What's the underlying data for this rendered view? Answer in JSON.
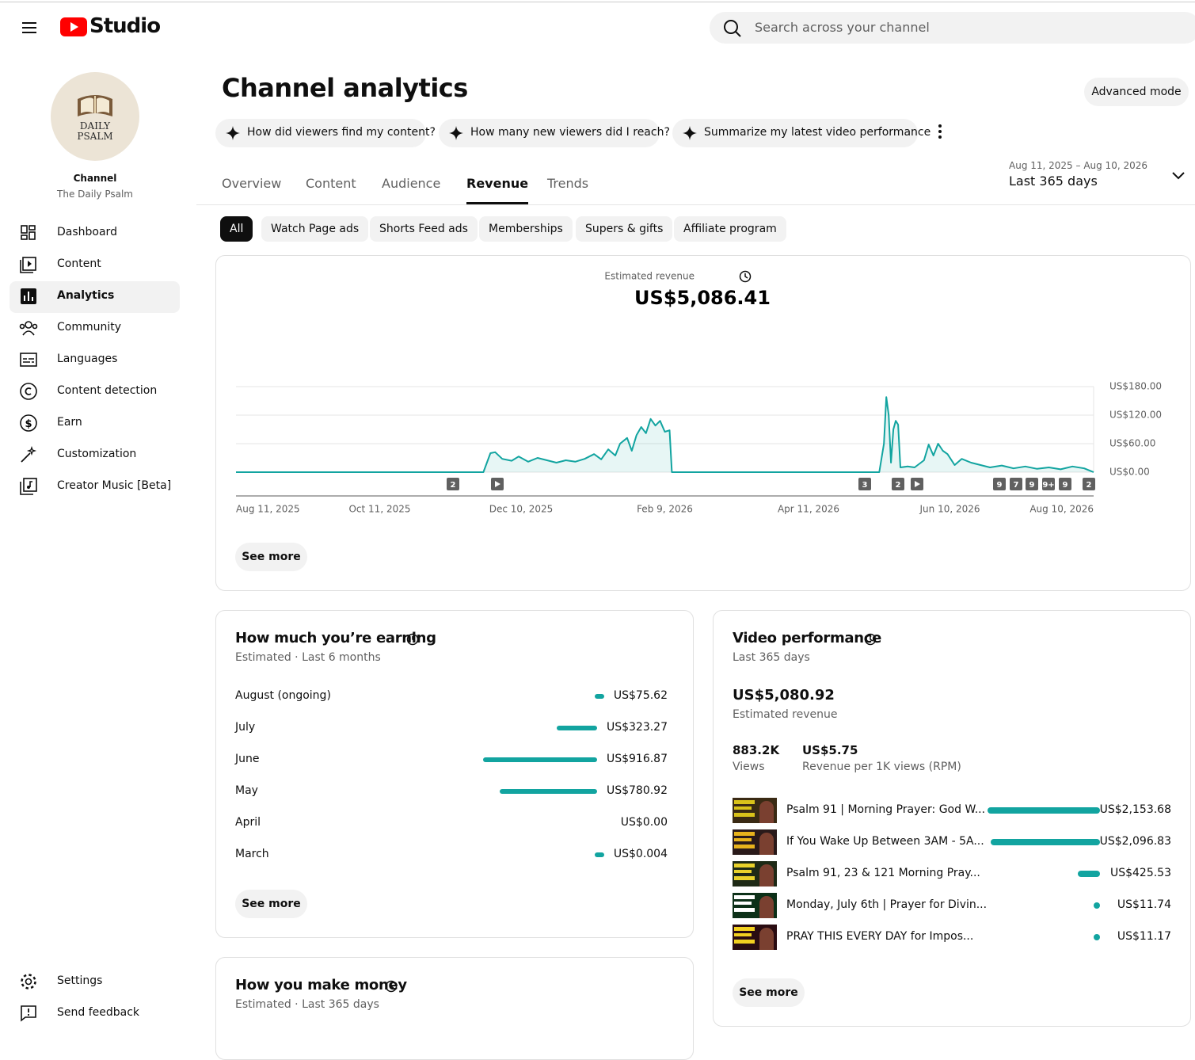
{
  "header": {
    "logo_text": "Studio",
    "search_placeholder": "Search across your channel"
  },
  "sidebar": {
    "avatar_lines": [
      "DAILY",
      "PSALM"
    ],
    "channel_label": "Channel",
    "channel_name": "The Daily Psalm",
    "nav": [
      "Dashboard",
      "Content",
      "Analytics",
      "Community",
      "Languages",
      "Content detection",
      "Earn",
      "Customization",
      "Creator Music [Beta]"
    ],
    "active_nav": 2,
    "footer_nav": [
      "Settings",
      "Send feedback"
    ]
  },
  "page": {
    "title": "Channel analytics",
    "advanced_mode": "Advanced mode",
    "prompts": [
      "How did viewers find my content?",
      "How many new viewers did I reach?",
      "Summarize my latest video performance"
    ],
    "tabs": [
      "Overview",
      "Content",
      "Audience",
      "Revenue",
      "Trends"
    ],
    "active_tab": 3,
    "date_range": "Aug 11, 2025 – Aug 10, 2026",
    "date_preset": "Last 365 days",
    "chips": [
      "All",
      "Watch Page ads",
      "Shorts Feed ads",
      "Memberships",
      "Supers & gifts",
      "Affiliate program"
    ],
    "active_chip": 0
  },
  "chart_data": {
    "type": "line",
    "title": "Estimated revenue",
    "total": "US$5,086.41",
    "color": "#12a4a0",
    "x": [
      "2025-08-11",
      "2025-11-24",
      "2025-11-27",
      "2025-11-29",
      "2025-12-02",
      "2025-12-06",
      "2025-12-09",
      "2025-12-13",
      "2025-12-17",
      "2025-12-21",
      "2025-12-25",
      "2025-12-29",
      "2026-01-02",
      "2026-01-06",
      "2026-01-10",
      "2026-01-13",
      "2026-01-16",
      "2026-01-19",
      "2026-01-21",
      "2026-01-24",
      "2026-01-26",
      "2026-01-28",
      "2026-01-30",
      "2026-02-01",
      "2026-02-03",
      "2026-02-05",
      "2026-02-07",
      "2026-02-09",
      "2026-02-11",
      "2026-02-12",
      "2026-05-11",
      "2026-05-13",
      "2026-05-14",
      "2026-05-15",
      "2026-05-16",
      "2026-05-17",
      "2026-05-18",
      "2026-05-19",
      "2026-05-20",
      "2026-05-23",
      "2026-05-26",
      "2026-05-30",
      "2026-06-01",
      "2026-06-03",
      "2026-06-05",
      "2026-06-07",
      "2026-06-09",
      "2026-06-12",
      "2026-06-15",
      "2026-06-19",
      "2026-06-23",
      "2026-06-27",
      "2026-07-02",
      "2026-07-07",
      "2026-07-12",
      "2026-07-17",
      "2026-07-22",
      "2026-07-27",
      "2026-08-01",
      "2026-08-06",
      "2026-08-09",
      "2026-08-10"
    ],
    "values": [
      0,
      0,
      40,
      42,
      28,
      24,
      33,
      22,
      30,
      25,
      20,
      25,
      22,
      28,
      38,
      27,
      48,
      35,
      60,
      72,
      45,
      78,
      95,
      82,
      112,
      98,
      108,
      85,
      88,
      0,
      0,
      60,
      158,
      120,
      20,
      90,
      108,
      100,
      10,
      12,
      10,
      25,
      58,
      35,
      60,
      45,
      38,
      15,
      28,
      20,
      15,
      10,
      14,
      8,
      12,
      7,
      10,
      6,
      12,
      8,
      2,
      0
    ],
    "xlim": [
      "2025-08-11",
      "2026-08-10"
    ],
    "xticks": [
      {
        "value": "2025-08-11",
        "label": "Aug 11, 2025"
      },
      {
        "value": "2025-10-11",
        "label": "Oct 11, 2025"
      },
      {
        "value": "2025-12-10",
        "label": "Dec 10, 2025"
      },
      {
        "value": "2026-02-09",
        "label": "Feb 9, 2026"
      },
      {
        "value": "2026-04-11",
        "label": "Apr 11, 2026"
      },
      {
        "value": "2026-06-10",
        "label": "Jun 10, 2026"
      },
      {
        "value": "2026-08-10",
        "label": "Aug 10, 2026"
      }
    ],
    "ylim": [
      0,
      180
    ],
    "yticks": [
      {
        "value": 0,
        "label": "US$0.00"
      },
      {
        "value": 60,
        "label": "US$60.00"
      },
      {
        "value": 120,
        "label": "US$120.00"
      },
      {
        "value": 180,
        "label": "US$180.00"
      }
    ],
    "grid": true,
    "markers": [
      "2",
      "3",
      "2",
      "9",
      "7",
      "9",
      "9+",
      "9",
      "2"
    ],
    "see_more": "See more"
  },
  "earning": {
    "title": "How much you’re earning",
    "subtitle": "Estimated · Last 6 months",
    "rows": [
      {
        "label": "August (ongoing)",
        "value": 75.62,
        "value_label": "US$75.62"
      },
      {
        "label": "July",
        "value": 323.27,
        "value_label": "US$323.27"
      },
      {
        "label": "June",
        "value": 916.87,
        "value_label": "US$916.87"
      },
      {
        "label": "May",
        "value": 780.92,
        "value_label": "US$780.92"
      },
      {
        "label": "April",
        "value": 0,
        "value_label": "US$0.00"
      },
      {
        "label": "March",
        "value": 0.004,
        "value_label": "US$0.004"
      }
    ],
    "see_more": "See more"
  },
  "video_performance": {
    "title": "Video performance",
    "subtitle": "Last 365 days",
    "total": "US$5,080.92",
    "total_label": "Estimated revenue",
    "stats": [
      {
        "value": "883.2K",
        "label": "Views"
      },
      {
        "value": "US$5.75",
        "label": "Revenue per 1K views (RPM)"
      }
    ],
    "videos": [
      {
        "title": "Psalm 91 | Morning Prayer: God W...",
        "value": 2153.68,
        "value_label": "US$2,153.68"
      },
      {
        "title": "If You Wake Up Between 3AM - 5A...",
        "value": 2096.83,
        "value_label": "US$2,096.83"
      },
      {
        "title": "Psalm 91, 23 & 121 Morning Pray...",
        "value": 425.53,
        "value_label": "US$425.53"
      },
      {
        "title": "Monday, July 6th | Prayer for Divin...",
        "value": 11.74,
        "value_label": "US$11.74"
      },
      {
        "title": "PRAY THIS EVERY DAY for Impos...",
        "value": 11.17,
        "value_label": "US$11.17"
      }
    ],
    "see_more": "See more"
  },
  "make_money": {
    "title": "How you make money",
    "subtitle": "Estimated · Last 365 days"
  }
}
